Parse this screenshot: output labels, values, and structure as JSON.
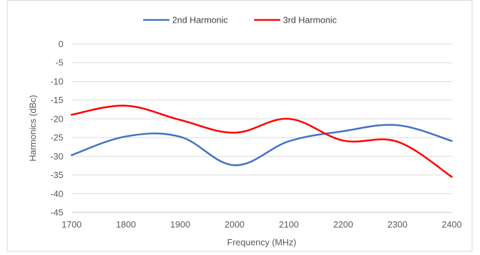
{
  "chart_data": {
    "type": "line",
    "title": "",
    "xlabel": "Frequency (MHz)",
    "ylabel": "Harmonics (dBc)",
    "x": [
      1700,
      1800,
      1900,
      2000,
      2100,
      2200,
      2300,
      2400
    ],
    "xlim": [
      1700,
      2400
    ],
    "ylim": [
      -45,
      0
    ],
    "x_ticks": [
      "1700",
      "1800",
      "1900",
      "2000",
      "2100",
      "2200",
      "2300",
      "2400"
    ],
    "y_ticks": [
      "0",
      "-5",
      "-10",
      "-15",
      "-20",
      "-25",
      "-30",
      "-35",
      "-40",
      "-45"
    ],
    "grid": "horizontal",
    "legend": "top-center",
    "series": [
      {
        "name": "2nd Harmonic",
        "color": "#4472C4",
        "values": [
          -29.7,
          -24.7,
          -24.8,
          -32.4,
          -26,
          -23.3,
          -21.7,
          -25.9
        ]
      },
      {
        "name": "3rd Harmonic",
        "color": "#FF0000",
        "values": [
          -18.9,
          -16.5,
          -20.3,
          -23.7,
          -20,
          -25.8,
          -26.1,
          -35.5
        ]
      }
    ]
  }
}
